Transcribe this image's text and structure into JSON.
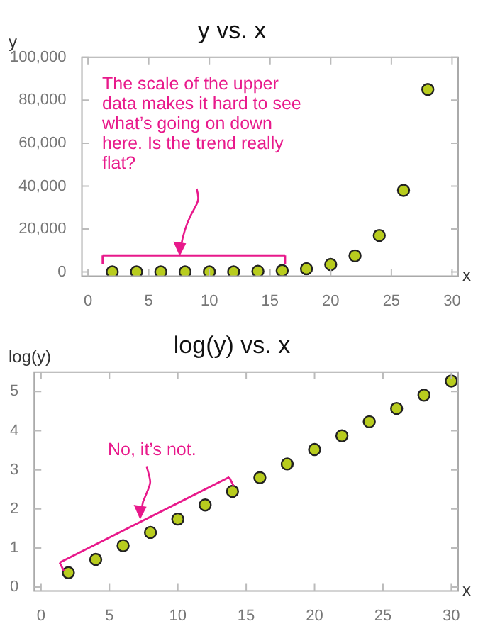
{
  "chart_data": [
    {
      "type": "scatter",
      "title": "y vs. x",
      "xlabel": "x",
      "ylabel": "y",
      "x": [
        2,
        4,
        6,
        8,
        10,
        12,
        14,
        16,
        18,
        20,
        22,
        24,
        26,
        28
      ],
      "series": [
        {
          "color": "#b8cc1e",
          "values": [
            0,
            0,
            0,
            0,
            0,
            0,
            300,
            600,
            1500,
            3500,
            7500,
            17000,
            38000,
            85000
          ]
        }
      ],
      "xlim": [
        -0.5,
        30.5
      ],
      "ylim": [
        -2000,
        100000
      ],
      "xticks": [
        0,
        5,
        10,
        15,
        20,
        25,
        30
      ],
      "yticks": [
        {
          "value": 0,
          "label": "0"
        },
        {
          "value": 20000,
          "label": "20,000"
        },
        {
          "value": 40000,
          "label": "40,000"
        },
        {
          "value": 60000,
          "label": "60,000"
        },
        {
          "value": 80000,
          "label": "80,000"
        },
        {
          "value": 100000,
          "label": "100,000"
        }
      ],
      "grid": false,
      "legend": false,
      "marker": "circle",
      "annotations": [
        "The scale of the upper data makes it hard to see what’s going on down here. Is the trend really flat?"
      ]
    },
    {
      "type": "scatter",
      "title": "log(y) vs. x",
      "xlabel": "x",
      "ylabel": "log(y)",
      "x": [
        2,
        4,
        6,
        8,
        10,
        12,
        14,
        16,
        18,
        20,
        22,
        24,
        26,
        28,
        30
      ],
      "series": [
        {
          "color": "#b8cc1e",
          "values": [
            0.37,
            0.71,
            1.06,
            1.4,
            1.74,
            2.1,
            2.45,
            2.8,
            3.15,
            3.52,
            3.87,
            4.23,
            4.57,
            4.91,
            5.27
          ]
        }
      ],
      "xlim": [
        -0.5,
        30.5
      ],
      "ylim": [
        -0.1,
        5.5
      ],
      "xticks": [
        0,
        5,
        10,
        15,
        20,
        25,
        30
      ],
      "yticks": [
        0,
        1,
        2,
        3,
        4,
        5
      ],
      "grid": false,
      "legend": false,
      "marker": "circle",
      "annotations": [
        "No, it’s not."
      ]
    }
  ]
}
